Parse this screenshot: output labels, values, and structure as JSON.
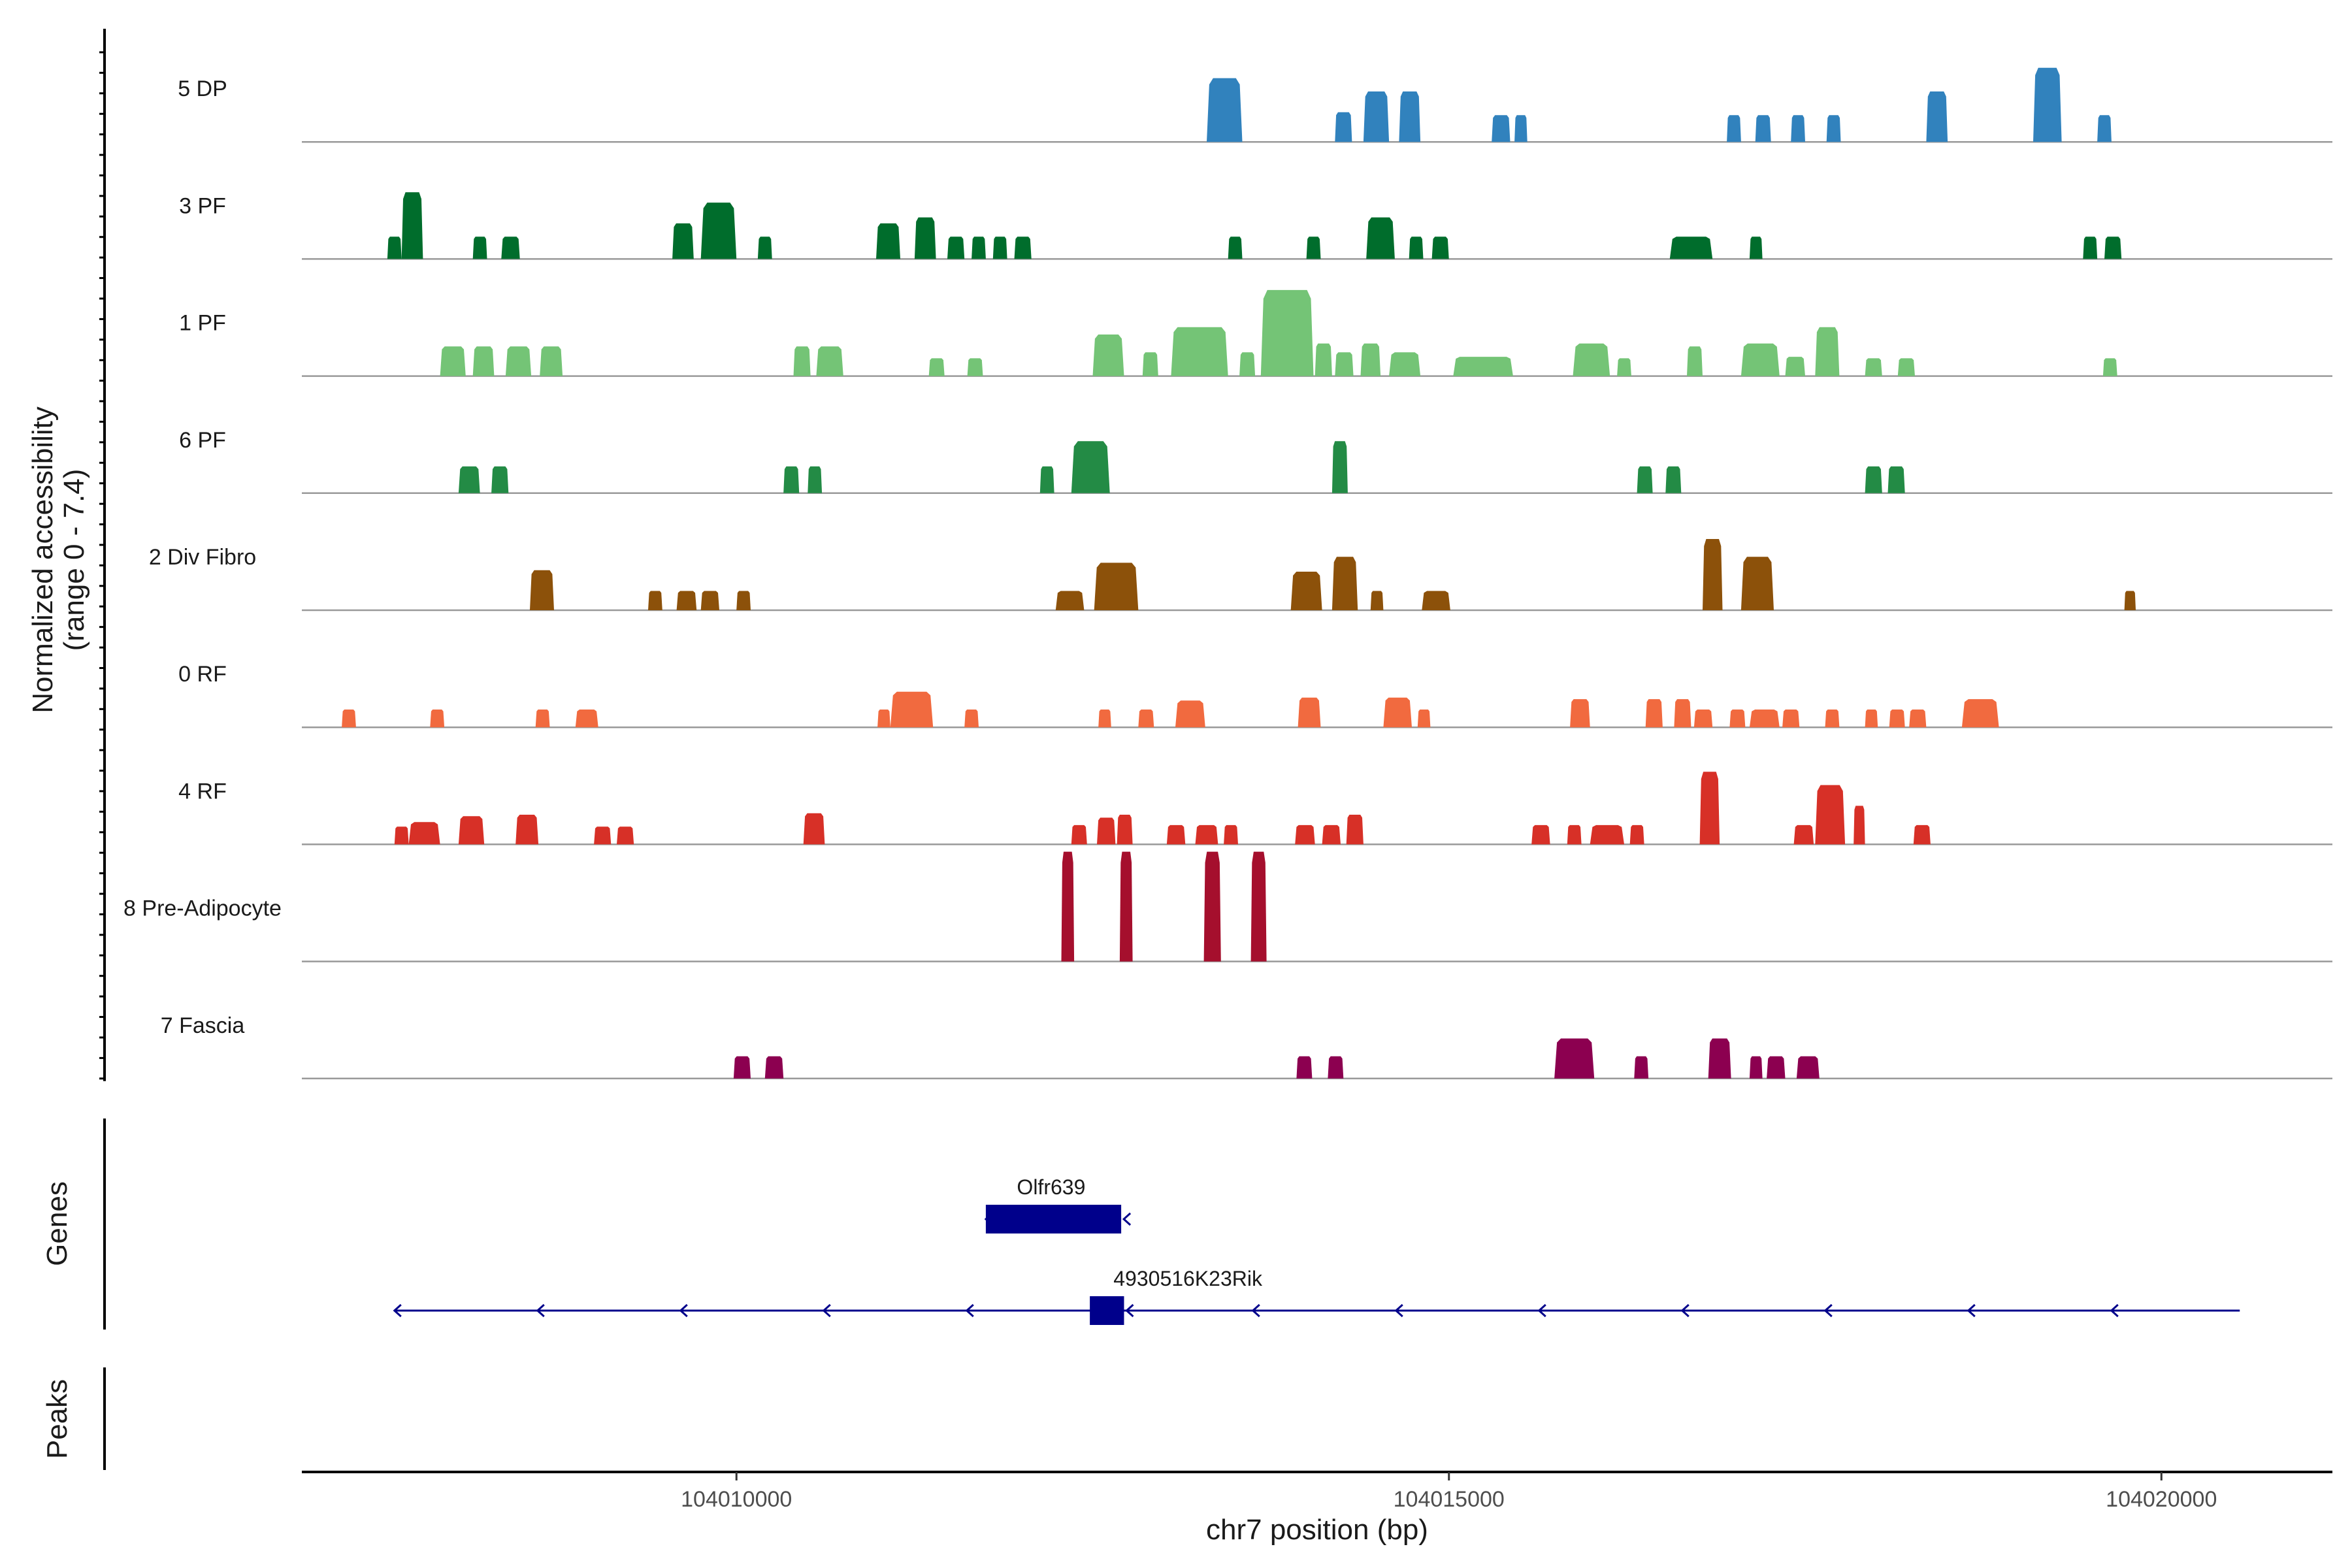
{
  "chart_data": {
    "type": "area",
    "title": "",
    "xlabel": "chr7 position (bp)",
    "ylabel": "Normalized accessibility\n(range 0 - 7.4)",
    "ylabel_lines": [
      "Normalized accessibility",
      "(range 0 - 7.4)"
    ],
    "ylim": [
      0,
      7.4
    ],
    "xlim": [
      104006950,
      104021200
    ],
    "x_ticks": [
      104010000,
      104015000,
      104020000
    ],
    "x_tick_labels": [
      "104010000",
      "104015000",
      "104020000"
    ],
    "genes_panel_label": "Genes",
    "peaks_panel_label": "Peaks",
    "series": [
      {
        "name": "5 DP",
        "color": "#3182BD",
        "peaks": [
          [
            104013300,
            104013550,
            4.3
          ],
          [
            104014200,
            104014320,
            2.0
          ],
          [
            104014400,
            104014580,
            3.4
          ],
          [
            104014650,
            104014800,
            3.4
          ],
          [
            104015300,
            104015430,
            1.8
          ],
          [
            104015460,
            104015550,
            1.8
          ],
          [
            104016950,
            104017050,
            1.8
          ],
          [
            104017150,
            104017260,
            1.8
          ],
          [
            104017400,
            104017500,
            1.8
          ],
          [
            104017650,
            104017750,
            1.8
          ],
          [
            104018350,
            104018500,
            3.4
          ],
          [
            104019100,
            104019300,
            5.0
          ],
          [
            104019550,
            104019650,
            1.8
          ]
        ]
      },
      {
        "name": "3 PF",
        "color": "#006D2C",
        "peaks": [
          [
            104007550,
            104007650,
            1.5
          ],
          [
            104007650,
            104007800,
            4.5
          ],
          [
            104008150,
            104008250,
            1.5
          ],
          [
            104008350,
            104008480,
            1.5
          ],
          [
            104009550,
            104009700,
            2.4
          ],
          [
            104009750,
            104010000,
            3.8
          ],
          [
            104010150,
            104010250,
            1.5
          ],
          [
            104010980,
            104011150,
            2.4
          ],
          [
            104011250,
            104011400,
            2.8
          ],
          [
            104011480,
            104011600,
            1.5
          ],
          [
            104011650,
            104011750,
            1.5
          ],
          [
            104011800,
            104011900,
            1.5
          ],
          [
            104011950,
            104012070,
            1.5
          ],
          [
            104013450,
            104013550,
            1.5
          ],
          [
            104014000,
            104014100,
            1.5
          ],
          [
            104014420,
            104014620,
            2.8
          ],
          [
            104014720,
            104014820,
            1.5
          ],
          [
            104014880,
            104015000,
            1.5
          ],
          [
            104016550,
            104016850,
            1.5
          ],
          [
            104017110,
            104017200,
            1.5
          ],
          [
            104019450,
            104019550,
            1.5
          ],
          [
            104019600,
            104019720,
            1.5
          ]
        ]
      },
      {
        "name": "1 PF",
        "color": "#74C476",
        "peaks": [
          [
            104007920,
            104008100,
            2.0
          ],
          [
            104008150,
            104008300,
            2.0
          ],
          [
            104008380,
            104008560,
            2.0
          ],
          [
            104008620,
            104008780,
            2.0
          ],
          [
            104010400,
            104010520,
            2.0
          ],
          [
            104010560,
            104010750,
            2.0
          ],
          [
            104011350,
            104011460,
            1.2
          ],
          [
            104011620,
            104011730,
            1.2
          ],
          [
            104012500,
            104012720,
            2.8
          ],
          [
            104012850,
            104012960,
            1.6
          ],
          [
            104013050,
            104013450,
            3.3
          ],
          [
            104013530,
            104013640,
            1.6
          ],
          [
            104013680,
            104014050,
            5.8
          ],
          [
            104014060,
            104014180,
            2.2
          ],
          [
            104014200,
            104014330,
            1.6
          ],
          [
            104014380,
            104014520,
            2.2
          ],
          [
            104014580,
            104014800,
            1.6
          ],
          [
            104015030,
            104015450,
            1.3
          ],
          [
            104015870,
            104016130,
            2.2
          ],
          [
            104016180,
            104016280,
            1.2
          ],
          [
            104016670,
            104016780,
            2.0
          ],
          [
            104017050,
            104017320,
            2.2
          ],
          [
            104017360,
            104017500,
            1.3
          ],
          [
            104017570,
            104017740,
            3.3
          ],
          [
            104017920,
            104018040,
            1.2
          ],
          [
            104018150,
            104018270,
            1.2
          ],
          [
            104019590,
            104019690,
            1.2
          ]
        ]
      },
      {
        "name": "6 PF",
        "color": "#238B45",
        "peaks": [
          [
            104008050,
            104008200,
            1.8
          ],
          [
            104008280,
            104008400,
            1.8
          ],
          [
            104010330,
            104010440,
            1.8
          ],
          [
            104010500,
            104010600,
            1.8
          ],
          [
            104012130,
            104012230,
            1.8
          ],
          [
            104012350,
            104012620,
            3.5
          ],
          [
            104014180,
            104014290,
            3.5
          ],
          [
            104016320,
            104016430,
            1.8
          ],
          [
            104016520,
            104016630,
            1.8
          ],
          [
            104017920,
            104018040,
            1.8
          ],
          [
            104018080,
            104018200,
            1.8
          ]
        ]
      },
      {
        "name": "2 Div Fibro",
        "color": "#8C510A",
        "peaks": [
          [
            104008550,
            104008720,
            2.7
          ],
          [
            104009380,
            104009480,
            1.3
          ],
          [
            104009580,
            104009720,
            1.3
          ],
          [
            104009750,
            104009880,
            1.3
          ],
          [
            104010000,
            104010100,
            1.3
          ],
          [
            104012240,
            104012440,
            1.3
          ],
          [
            104012510,
            104012820,
            3.2
          ],
          [
            104013890,
            104014110,
            2.6
          ],
          [
            104014180,
            104014360,
            3.6
          ],
          [
            104014450,
            104014540,
            1.3
          ],
          [
            104014810,
            104015010,
            1.3
          ],
          [
            104016780,
            104016920,
            4.8
          ],
          [
            104017050,
            104017280,
            3.6
          ],
          [
            104019740,
            104019820,
            1.3
          ]
        ]
      },
      {
        "name": "0 RF",
        "color": "#F16A3F",
        "peaks": [
          [
            104007230,
            104007330,
            1.2
          ],
          [
            104007850,
            104007950,
            1.2
          ],
          [
            104008590,
            104008690,
            1.2
          ],
          [
            104008870,
            104009030,
            1.2
          ],
          [
            104010990,
            104011080,
            1.2
          ],
          [
            104011080,
            104011380,
            2.4
          ],
          [
            104011600,
            104011700,
            1.2
          ],
          [
            104012540,
            104012630,
            1.2
          ],
          [
            104012820,
            104012930,
            1.2
          ],
          [
            104013080,
            104013290,
            1.8
          ],
          [
            104013940,
            104014100,
            2.0
          ],
          [
            104014540,
            104014740,
            2.0
          ],
          [
            104014780,
            104014870,
            1.2
          ],
          [
            104015850,
            104015990,
            1.9
          ],
          [
            104016380,
            104016500,
            1.9
          ],
          [
            104016580,
            104016700,
            1.9
          ],
          [
            104016720,
            104016850,
            1.2
          ],
          [
            104016970,
            104017080,
            1.2
          ],
          [
            104017110,
            104017320,
            1.2
          ],
          [
            104017340,
            104017460,
            1.2
          ],
          [
            104017640,
            104017740,
            1.2
          ],
          [
            104017920,
            104018010,
            1.2
          ],
          [
            104018090,
            104018200,
            1.2
          ],
          [
            104018230,
            104018350,
            1.2
          ],
          [
            104018600,
            104018860,
            1.9
          ]
        ]
      },
      {
        "name": "4 RF",
        "color": "#D73027",
        "peaks": [
          [
            104007600,
            104007700,
            1.2
          ],
          [
            104007700,
            104007920,
            1.5
          ],
          [
            104008050,
            104008230,
            1.9
          ],
          [
            104008450,
            104008610,
            2.0
          ],
          [
            104009000,
            104009120,
            1.2
          ],
          [
            104009160,
            104009280,
            1.2
          ],
          [
            104010470,
            104010620,
            2.1
          ],
          [
            104012350,
            104012460,
            1.3
          ],
          [
            104012530,
            104012660,
            1.8
          ],
          [
            104012670,
            104012780,
            2.0
          ],
          [
            104013020,
            104013150,
            1.3
          ],
          [
            104013220,
            104013380,
            1.3
          ],
          [
            104013420,
            104013520,
            1.3
          ],
          [
            104013920,
            104014060,
            1.3
          ],
          [
            104014110,
            104014240,
            1.3
          ],
          [
            104014280,
            104014400,
            2.0
          ],
          [
            104015580,
            104015710,
            1.3
          ],
          [
            104015830,
            104015930,
            1.3
          ],
          [
            104015990,
            104016230,
            1.3
          ],
          [
            104016270,
            104016370,
            1.3
          ],
          [
            104016760,
            104016900,
            4.9
          ],
          [
            104017420,
            104017560,
            1.3
          ],
          [
            104017570,
            104017780,
            4.0
          ],
          [
            104017840,
            104017920,
            2.6
          ],
          [
            104018260,
            104018380,
            1.3
          ]
        ]
      },
      {
        "name": "8 Pre-Adipocyte",
        "color": "#A50F2D",
        "peaks": [
          [
            104012280,
            104012370,
            7.4
          ],
          [
            104012690,
            104012780,
            7.4
          ],
          [
            104013280,
            104013400,
            7.4
          ],
          [
            104013610,
            104013720,
            7.4
          ]
        ]
      },
      {
        "name": "7 Fascia",
        "color": "#8C0050",
        "peaks": [
          [
            104009980,
            104010100,
            1.5
          ],
          [
            104010200,
            104010330,
            1.5
          ],
          [
            104013930,
            104014040,
            1.5
          ],
          [
            104014150,
            104014260,
            1.5
          ],
          [
            104015740,
            104016020,
            2.7
          ],
          [
            104016300,
            104016400,
            1.5
          ],
          [
            104016820,
            104016980,
            2.7
          ],
          [
            104017110,
            104017200,
            1.5
          ],
          [
            104017230,
            104017360,
            1.5
          ],
          [
            104017440,
            104017600,
            1.5
          ]
        ]
      }
    ],
    "genes": [
      {
        "name": "Olfr639",
        "strand": "-",
        "start": 104011750,
        "end": 104012700,
        "exons": [
          [
            104011750,
            104012700
          ]
        ],
        "row": 0,
        "color": "#00008B"
      },
      {
        "name": "4930516K23Rik",
        "strand": "-",
        "start": 104007600,
        "end": 104020550,
        "exons": [
          [
            104012480,
            104012720
          ]
        ],
        "row": 1,
        "color": "#00008B"
      }
    ],
    "baseline_color": "#999999",
    "axis_color": "#000000"
  }
}
